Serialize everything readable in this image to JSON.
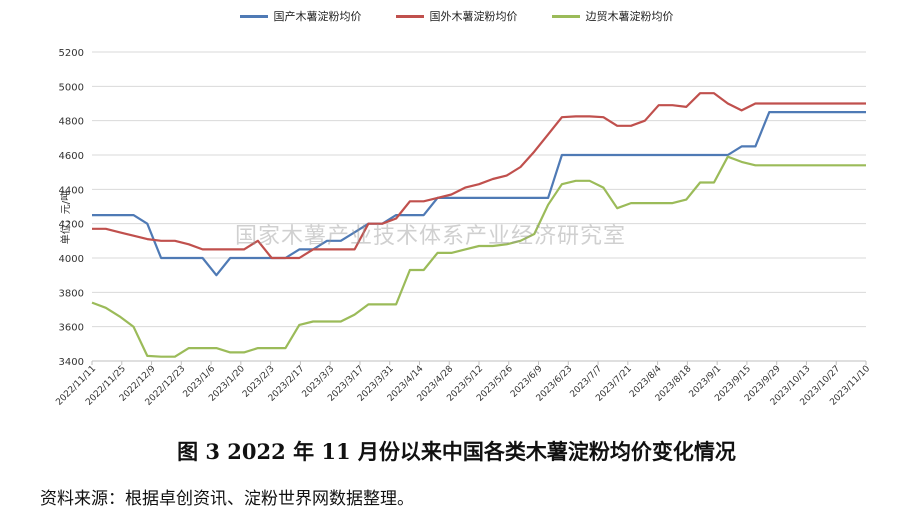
{
  "figure_title": "图 3   2022 年 11 月份以来中国各类木薯淀粉均价变化情况",
  "source_note": "资料来源：根据卓创资讯、淀粉世界网数据整理。",
  "watermark": "国家木薯产业技术体系产业经济研究室",
  "chart_data": {
    "type": "line",
    "ylabel": "单位：元/吨",
    "ylim": [
      3400,
      5200
    ],
    "yticks": [
      3400,
      3600,
      3800,
      4000,
      4200,
      4400,
      4600,
      4800,
      5000,
      5200
    ],
    "grid": true,
    "legend_position": "top",
    "x_tick_labels": [
      "2022/11/11",
      "2022/11/25",
      "2022/12/9",
      "2022/12/23",
      "2023/1/6",
      "2023/1/20",
      "2023/2/3",
      "2023/2/17",
      "2023/3/3",
      "2023/3/17",
      "2023/3/31",
      "2023/4/14",
      "2023/4/28",
      "2023/5/12",
      "2023/5/26",
      "2023/6/9",
      "2023/6/23",
      "2023/7/7",
      "2023/7/21",
      "2023/8/4",
      "2023/8/18",
      "2023/9/1",
      "2023/9/15",
      "2023/9/29",
      "2023/10/13",
      "2023/10/27",
      "2023/11/10"
    ],
    "series": [
      {
        "name": "国产木薯淀粉均价",
        "color": "#4f7ab5",
        "values": [
          4250,
          4250,
          4250,
          4250,
          4200,
          4000,
          4000,
          4000,
          4000,
          3900,
          4000,
          4000,
          4000,
          4000,
          4000,
          4050,
          4050,
          4100,
          4100,
          4150,
          4200,
          4200,
          4250,
          4250,
          4250,
          4350,
          4350,
          4350,
          4350,
          4350,
          4350,
          4350,
          4350,
          4350,
          4600,
          4600,
          4600,
          4600,
          4600,
          4600,
          4600,
          4600,
          4600,
          4600,
          4600,
          4600,
          4600,
          4650,
          4650,
          4850,
          4850,
          4850,
          4850,
          4850,
          4850,
          4850,
          4850
        ]
      },
      {
        "name": "国外木薯淀粉均价",
        "color": "#c0504d",
        "values": [
          4170,
          4170,
          4150,
          4130,
          4110,
          4100,
          4100,
          4080,
          4050,
          4050,
          4050,
          4050,
          4100,
          4000,
          4000,
          4000,
          4050,
          4050,
          4050,
          4050,
          4200,
          4200,
          4230,
          4330,
          4330,
          4350,
          4370,
          4410,
          4430,
          4460,
          4480,
          4530,
          4620,
          4720,
          4820,
          4825,
          4825,
          4820,
          4770,
          4770,
          4800,
          4890,
          4890,
          4880,
          4960,
          4960,
          4900,
          4860,
          4900,
          4900,
          4900,
          4900,
          4900,
          4900,
          4900,
          4900,
          4900
        ]
      },
      {
        "name": "边贸木薯淀粉均价",
        "color": "#9bbb59",
        "values": [
          3740,
          3710,
          3660,
          3600,
          3430,
          3425,
          3425,
          3475,
          3475,
          3475,
          3450,
          3450,
          3475,
          3475,
          3475,
          3610,
          3630,
          3630,
          3630,
          3670,
          3730,
          3730,
          3730,
          3930,
          3930,
          4030,
          4030,
          4050,
          4070,
          4070,
          4080,
          4100,
          4140,
          4310,
          4430,
          4450,
          4450,
          4410,
          4290,
          4320,
          4320,
          4320,
          4320,
          4340,
          4440,
          4440,
          4590,
          4560,
          4540,
          4540,
          4540,
          4540,
          4540,
          4540,
          4540,
          4540,
          4540
        ]
      }
    ]
  }
}
